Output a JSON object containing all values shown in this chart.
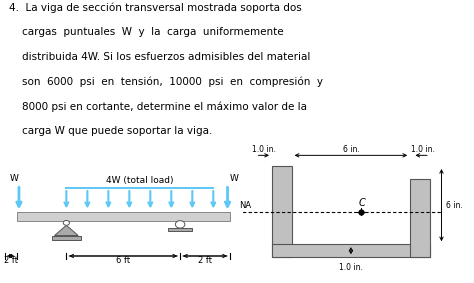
{
  "bg_color": "#ffffff",
  "text_color": "#000000",
  "beam_color": "#d0d0d0",
  "arrow_color": "#5bc8f5",
  "support_color": "#aaaaaa",
  "section_color": "#c0c0c0",
  "section_edge": "#555555",
  "paragraph_lines": [
    "4.  La viga de sección transversal mostrada soporta dos",
    "    cargas  puntuales  W  y  la  carga  uniformemente",
    "    distribuida 4W. Si los esfuerzos admisibles del material",
    "    son  6000  psi  en  tensión,  10000  psi  en  compresión  y",
    "    8000 psi en cortante, determine el máximo valor de la",
    "    carga W que puede soportar la viga."
  ],
  "font_size_text": 7.5,
  "font_size_label": 6.5,
  "font_size_dim": 6.0
}
